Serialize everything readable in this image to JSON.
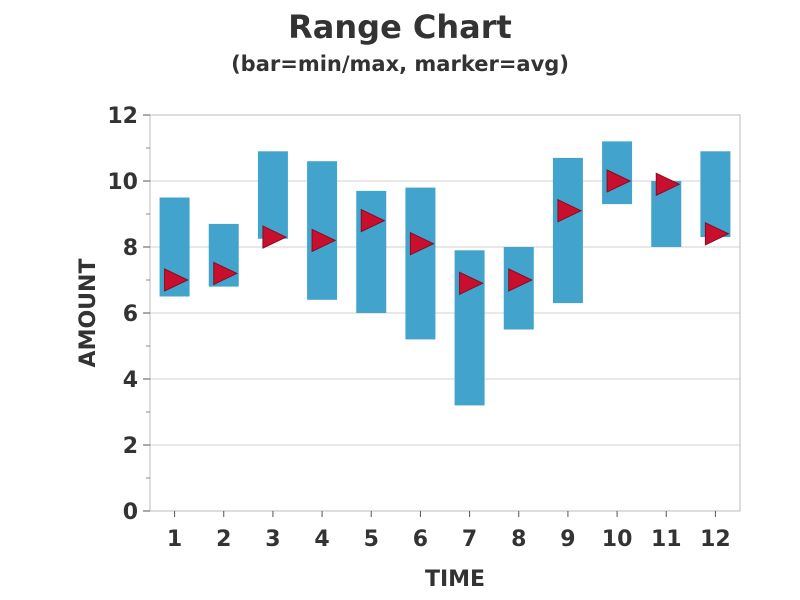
{
  "chart_data": {
    "type": "range",
    "title": "Range Chart",
    "subtitle": "(bar=min/max, marker=avg)",
    "xlabel": "TIME",
    "ylabel": "AMOUNT",
    "ylim": [
      0,
      12
    ],
    "yticks": [
      0,
      2,
      4,
      6,
      8,
      10,
      12
    ],
    "categories": [
      "1",
      "2",
      "3",
      "4",
      "5",
      "6",
      "7",
      "8",
      "9",
      "10",
      "11",
      "12"
    ],
    "min": [
      6.5,
      6.8,
      8.25,
      6.4,
      6.0,
      5.2,
      3.2,
      5.5,
      6.3,
      9.3,
      8.0,
      8.3
    ],
    "max": [
      9.5,
      8.7,
      10.9,
      10.6,
      9.7,
      9.8,
      7.9,
      8.0,
      10.7,
      11.2,
      10.0,
      10.9
    ],
    "avg": [
      7.0,
      7.2,
      8.3,
      8.2,
      8.8,
      8.1,
      6.9,
      7.0,
      9.1,
      10.0,
      9.9,
      8.4
    ],
    "grid": true,
    "colors": {
      "bar": "#42a4cc",
      "marker": "#c8102e",
      "marker_edge": "#8b0a1e",
      "grid": "#d0d0d0",
      "frame": "#bbbbbb",
      "text": "#333333"
    },
    "marker_shape": "right-triangle"
  }
}
